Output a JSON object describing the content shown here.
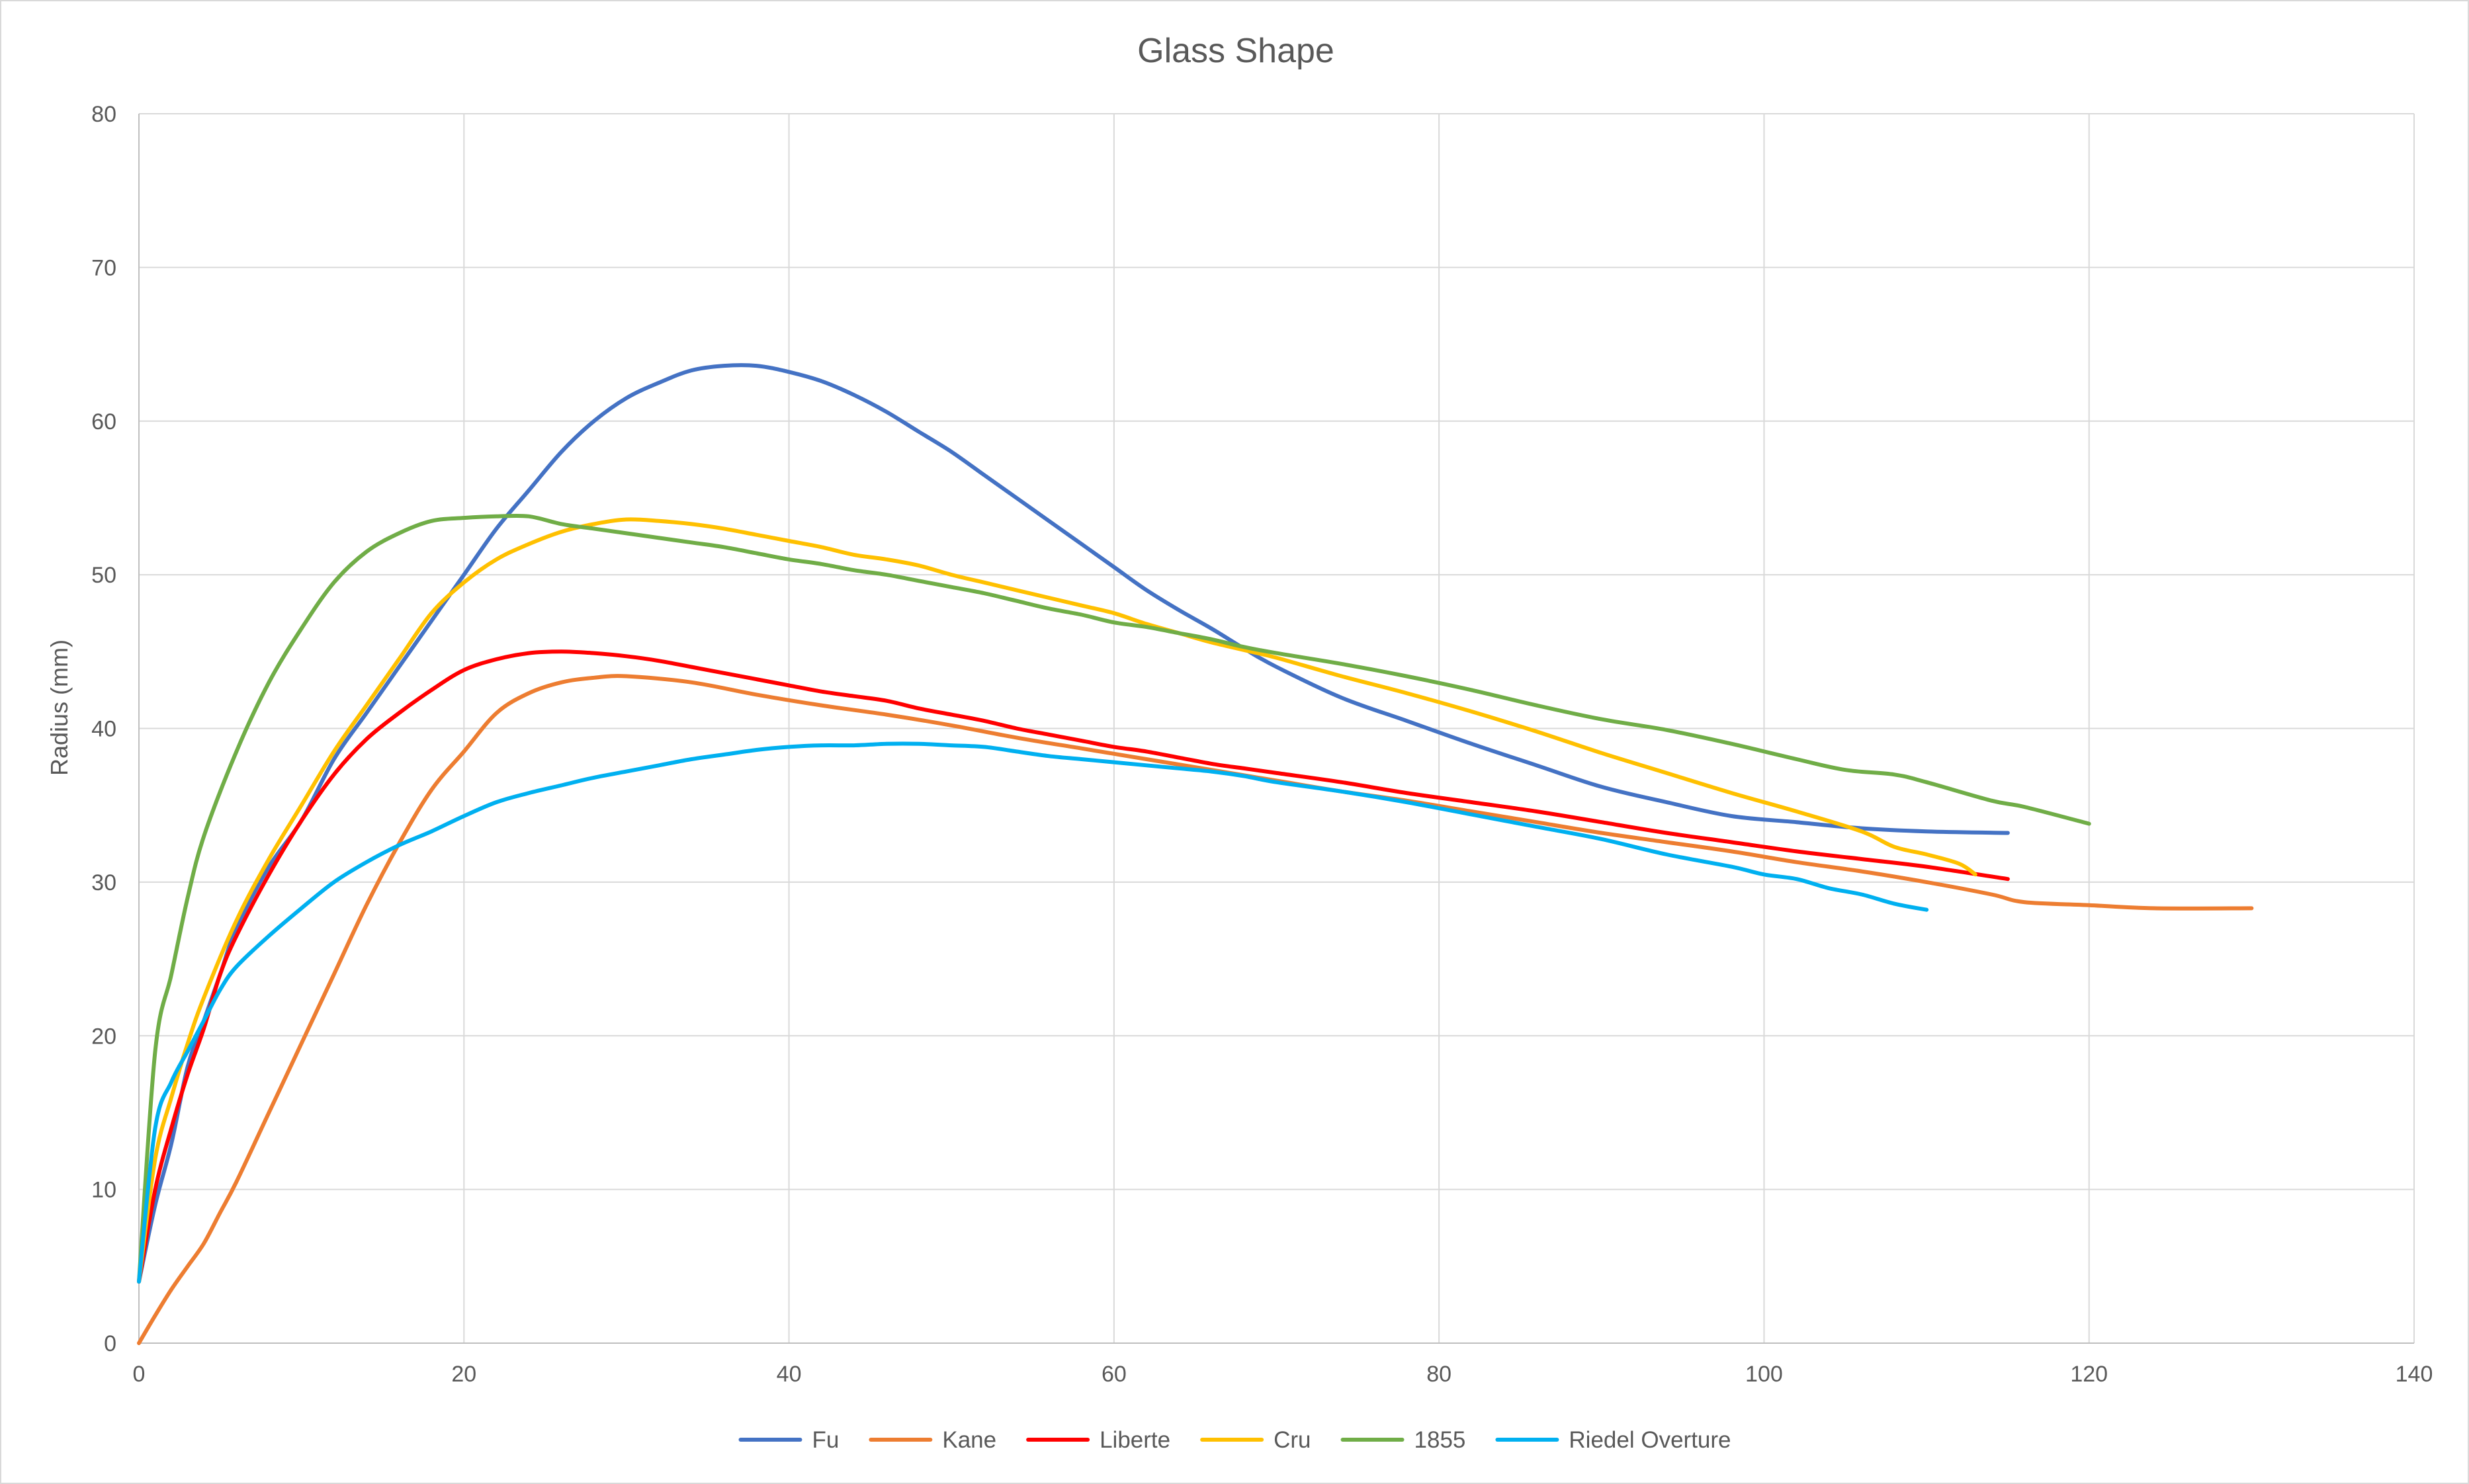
{
  "chart_data": {
    "type": "line",
    "title": "Glass Shape",
    "xlabel": "",
    "ylabel": "Radius (mm)",
    "xlim": [
      0,
      140
    ],
    "ylim": [
      0,
      80
    ],
    "x_ticks": [
      0,
      20,
      40,
      60,
      80,
      100,
      120,
      140
    ],
    "y_ticks": [
      0,
      10,
      20,
      30,
      40,
      50,
      60,
      70,
      80
    ],
    "grid": true,
    "legend_position": "bottom",
    "series": [
      {
        "name": "Fu",
        "color": "#4472C4",
        "points": [
          [
            0,
            4
          ],
          [
            1,
            9
          ],
          [
            2,
            13
          ],
          [
            3,
            18
          ],
          [
            4,
            21
          ],
          [
            5,
            24
          ],
          [
            6,
            27
          ],
          [
            8,
            31
          ],
          [
            10,
            34
          ],
          [
            12,
            38
          ],
          [
            14,
            41
          ],
          [
            16,
            44
          ],
          [
            18,
            47
          ],
          [
            20,
            50
          ],
          [
            22,
            53
          ],
          [
            24,
            55.5
          ],
          [
            26,
            58
          ],
          [
            28,
            60
          ],
          [
            30,
            61.5
          ],
          [
            32,
            62.5
          ],
          [
            34,
            63.3
          ],
          [
            36,
            63.6
          ],
          [
            38,
            63.6
          ],
          [
            40,
            63.2
          ],
          [
            42,
            62.6
          ],
          [
            44,
            61.7
          ],
          [
            46,
            60.6
          ],
          [
            48,
            59.3
          ],
          [
            50,
            58
          ],
          [
            52,
            56.5
          ],
          [
            54,
            55
          ],
          [
            56,
            53.5
          ],
          [
            58,
            52
          ],
          [
            60,
            50.5
          ],
          [
            62,
            49
          ],
          [
            64,
            47.7
          ],
          [
            66,
            46.5
          ],
          [
            68,
            45.2
          ],
          [
            70,
            44
          ],
          [
            74,
            42
          ],
          [
            78,
            40.5
          ],
          [
            82,
            39
          ],
          [
            86,
            37.6
          ],
          [
            90,
            36.2
          ],
          [
            94,
            35.2
          ],
          [
            98,
            34.3
          ],
          [
            102,
            33.9
          ],
          [
            106,
            33.5
          ],
          [
            110,
            33.3
          ],
          [
            115,
            33.2
          ]
        ]
      },
      {
        "name": "Kane",
        "color": "#ED7D31",
        "points": [
          [
            0,
            0
          ],
          [
            1,
            1.8
          ],
          [
            2,
            3.5
          ],
          [
            3,
            5
          ],
          [
            4,
            6.5
          ],
          [
            5,
            8.5
          ],
          [
            6,
            10.5
          ],
          [
            8,
            15
          ],
          [
            10,
            19.5
          ],
          [
            12,
            24
          ],
          [
            14,
            28.5
          ],
          [
            16,
            32.5
          ],
          [
            18,
            36
          ],
          [
            20,
            38.5
          ],
          [
            22,
            41
          ],
          [
            24,
            42.3
          ],
          [
            26,
            43
          ],
          [
            28,
            43.3
          ],
          [
            30,
            43.4
          ],
          [
            34,
            43
          ],
          [
            38,
            42.2
          ],
          [
            42,
            41.5
          ],
          [
            46,
            40.9
          ],
          [
            50,
            40.2
          ],
          [
            54,
            39.4
          ],
          [
            58,
            38.7
          ],
          [
            62,
            38
          ],
          [
            66,
            37.3
          ],
          [
            70,
            36.6
          ],
          [
            74,
            35.9
          ],
          [
            78,
            35.3
          ],
          [
            82,
            34.6
          ],
          [
            86,
            33.9
          ],
          [
            90,
            33.2
          ],
          [
            94,
            32.6
          ],
          [
            98,
            32
          ],
          [
            102,
            31.3
          ],
          [
            106,
            30.7
          ],
          [
            110,
            30
          ],
          [
            114,
            29.2
          ],
          [
            116,
            28.7
          ],
          [
            120,
            28.5
          ],
          [
            124,
            28.3
          ],
          [
            130,
            28.3
          ]
        ]
      },
      {
        "name": "Liberte",
        "color": "#FF0000",
        "points": [
          [
            0,
            4
          ],
          [
            1,
            10
          ],
          [
            2,
            14
          ],
          [
            3,
            17.5
          ],
          [
            4,
            20.5
          ],
          [
            5,
            24
          ],
          [
            6,
            26.5
          ],
          [
            8,
            30.5
          ],
          [
            10,
            34
          ],
          [
            12,
            37
          ],
          [
            14,
            39.3
          ],
          [
            16,
            41
          ],
          [
            18,
            42.5
          ],
          [
            20,
            43.8
          ],
          [
            22,
            44.5
          ],
          [
            24,
            44.9
          ],
          [
            26,
            45
          ],
          [
            28,
            44.9
          ],
          [
            30,
            44.7
          ],
          [
            32,
            44.4
          ],
          [
            34,
            44
          ],
          [
            36,
            43.6
          ],
          [
            38,
            43.2
          ],
          [
            40,
            42.8
          ],
          [
            42,
            42.4
          ],
          [
            44,
            42.1
          ],
          [
            46,
            41.8
          ],
          [
            48,
            41.3
          ],
          [
            50,
            40.9
          ],
          [
            52,
            40.5
          ],
          [
            54,
            40
          ],
          [
            56,
            39.6
          ],
          [
            58,
            39.2
          ],
          [
            60,
            38.8
          ],
          [
            62,
            38.5
          ],
          [
            64,
            38.1
          ],
          [
            66,
            37.7
          ],
          [
            68,
            37.4
          ],
          [
            70,
            37.1
          ],
          [
            74,
            36.5
          ],
          [
            78,
            35.8
          ],
          [
            82,
            35.2
          ],
          [
            86,
            34.6
          ],
          [
            90,
            33.9
          ],
          [
            94,
            33.2
          ],
          [
            98,
            32.6
          ],
          [
            102,
            32
          ],
          [
            106,
            31.5
          ],
          [
            110,
            31
          ],
          [
            115,
            30.2
          ]
        ]
      },
      {
        "name": "Cru",
        "color": "#FFC000",
        "points": [
          [
            0,
            4
          ],
          [
            1,
            12
          ],
          [
            2,
            16
          ],
          [
            3,
            19.5
          ],
          [
            4,
            22.5
          ],
          [
            6,
            27.5
          ],
          [
            8,
            31.5
          ],
          [
            10,
            35
          ],
          [
            12,
            38.5
          ],
          [
            14,
            41.5
          ],
          [
            16,
            44.5
          ],
          [
            18,
            47.5
          ],
          [
            20,
            49.5
          ],
          [
            22,
            51
          ],
          [
            24,
            52
          ],
          [
            26,
            52.8
          ],
          [
            28,
            53.3
          ],
          [
            30,
            53.6
          ],
          [
            32,
            53.5
          ],
          [
            34,
            53.3
          ],
          [
            36,
            53
          ],
          [
            38,
            52.6
          ],
          [
            40,
            52.2
          ],
          [
            42,
            51.8
          ],
          [
            44,
            51.3
          ],
          [
            46,
            51
          ],
          [
            48,
            50.6
          ],
          [
            50,
            50
          ],
          [
            52,
            49.5
          ],
          [
            54,
            49
          ],
          [
            56,
            48.5
          ],
          [
            58,
            48
          ],
          [
            60,
            47.5
          ],
          [
            62,
            46.8
          ],
          [
            64,
            46.2
          ],
          [
            66,
            45.6
          ],
          [
            68,
            45.1
          ],
          [
            70,
            44.6
          ],
          [
            74,
            43.4
          ],
          [
            78,
            42.3
          ],
          [
            82,
            41.1
          ],
          [
            86,
            39.8
          ],
          [
            90,
            38.4
          ],
          [
            94,
            37.1
          ],
          [
            98,
            35.8
          ],
          [
            102,
            34.6
          ],
          [
            106,
            33.3
          ],
          [
            108,
            32.3
          ],
          [
            110,
            31.8
          ],
          [
            112,
            31.2
          ],
          [
            113,
            30.5
          ]
        ]
      },
      {
        "name": "1855",
        "color": "#70AD47",
        "points": [
          [
            0,
            4
          ],
          [
            1,
            19
          ],
          [
            2,
            24
          ],
          [
            3,
            29
          ],
          [
            4,
            33
          ],
          [
            6,
            38.5
          ],
          [
            8,
            43
          ],
          [
            10,
            46.5
          ],
          [
            12,
            49.5
          ],
          [
            14,
            51.5
          ],
          [
            16,
            52.7
          ],
          [
            18,
            53.5
          ],
          [
            20,
            53.7
          ],
          [
            22,
            53.8
          ],
          [
            24,
            53.8
          ],
          [
            26,
            53.3
          ],
          [
            28,
            53
          ],
          [
            30,
            52.7
          ],
          [
            32,
            52.4
          ],
          [
            34,
            52.1
          ],
          [
            36,
            51.8
          ],
          [
            38,
            51.4
          ],
          [
            40,
            51
          ],
          [
            42,
            50.7
          ],
          [
            44,
            50.3
          ],
          [
            46,
            50
          ],
          [
            48,
            49.6
          ],
          [
            50,
            49.2
          ],
          [
            52,
            48.8
          ],
          [
            54,
            48.3
          ],
          [
            56,
            47.8
          ],
          [
            58,
            47.4
          ],
          [
            60,
            46.9
          ],
          [
            62,
            46.6
          ],
          [
            64,
            46.2
          ],
          [
            66,
            45.8
          ],
          [
            68,
            45.3
          ],
          [
            70,
            44.9
          ],
          [
            74,
            44.2
          ],
          [
            78,
            43.4
          ],
          [
            82,
            42.5
          ],
          [
            86,
            41.5
          ],
          [
            90,
            40.6
          ],
          [
            94,
            39.9
          ],
          [
            98,
            39
          ],
          [
            102,
            38
          ],
          [
            105,
            37.3
          ],
          [
            108,
            37
          ],
          [
            110,
            36.5
          ],
          [
            114,
            35.3
          ],
          [
            116,
            34.9
          ],
          [
            120,
            33.8
          ]
        ]
      },
      {
        "name": "Riedel Overture",
        "color": "#00B0F0",
        "points": [
          [
            0,
            4
          ],
          [
            1,
            14
          ],
          [
            2,
            17
          ],
          [
            3,
            19
          ],
          [
            4,
            21
          ],
          [
            5,
            23
          ],
          [
            6,
            24.5
          ],
          [
            8,
            26.5
          ],
          [
            10,
            28.3
          ],
          [
            12,
            30
          ],
          [
            14,
            31.3
          ],
          [
            16,
            32.4
          ],
          [
            18,
            33.3
          ],
          [
            20,
            34.3
          ],
          [
            22,
            35.2
          ],
          [
            24,
            35.8
          ],
          [
            26,
            36.3
          ],
          [
            28,
            36.8
          ],
          [
            30,
            37.2
          ],
          [
            32,
            37.6
          ],
          [
            34,
            38
          ],
          [
            36,
            38.3
          ],
          [
            38,
            38.6
          ],
          [
            40,
            38.8
          ],
          [
            42,
            38.9
          ],
          [
            44,
            38.9
          ],
          [
            46,
            39
          ],
          [
            48,
            39
          ],
          [
            50,
            38.9
          ],
          [
            52,
            38.8
          ],
          [
            54,
            38.5
          ],
          [
            56,
            38.2
          ],
          [
            58,
            38
          ],
          [
            60,
            37.8
          ],
          [
            62,
            37.6
          ],
          [
            64,
            37.4
          ],
          [
            66,
            37.2
          ],
          [
            68,
            36.9
          ],
          [
            70,
            36.5
          ],
          [
            74,
            35.9
          ],
          [
            78,
            35.2
          ],
          [
            82,
            34.4
          ],
          [
            86,
            33.6
          ],
          [
            90,
            32.8
          ],
          [
            94,
            31.8
          ],
          [
            98,
            31
          ],
          [
            100,
            30.5
          ],
          [
            102,
            30.2
          ],
          [
            104,
            29.6
          ],
          [
            106,
            29.2
          ],
          [
            108,
            28.6
          ],
          [
            110,
            28.2
          ]
        ]
      }
    ]
  }
}
